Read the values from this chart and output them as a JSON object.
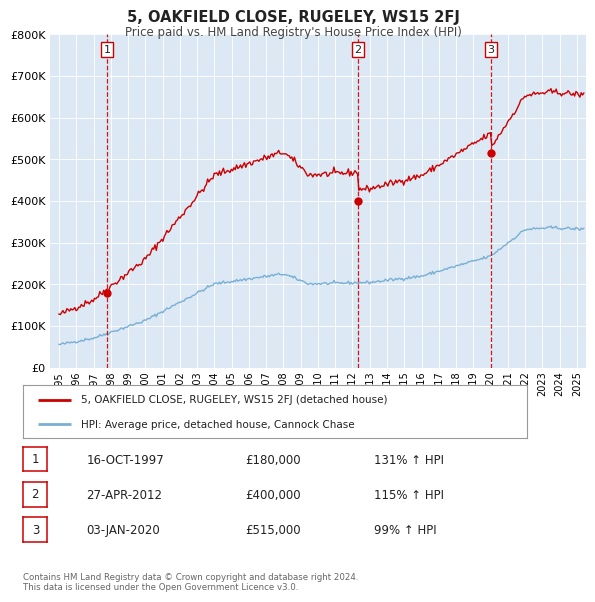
{
  "title": "5, OAKFIELD CLOSE, RUGELEY, WS15 2FJ",
  "subtitle": "Price paid vs. HM Land Registry's House Price Index (HPI)",
  "red_label": "5, OAKFIELD CLOSE, RUGELEY, WS15 2FJ (detached house)",
  "blue_label": "HPI: Average price, detached house, Cannock Chase",
  "sale_color": "#cc0000",
  "hpi_color": "#7aafd4",
  "plot_bg": "#dce9f5",
  "ylim": [
    0,
    800000
  ],
  "yticks": [
    0,
    100000,
    200000,
    300000,
    400000,
    500000,
    600000,
    700000,
    800000
  ],
  "ytick_labels": [
    "£0",
    "£100K",
    "£200K",
    "£300K",
    "£400K",
    "£500K",
    "£600K",
    "£700K",
    "£800K"
  ],
  "xlim_start": 1994.5,
  "xlim_end": 2025.5,
  "transactions": [
    {
      "num": 1,
      "date_str": "16-OCT-1997",
      "date_x": 1997.79,
      "price": 180000,
      "pct": "131%",
      "dir": "↑"
    },
    {
      "num": 2,
      "date_str": "27-APR-2012",
      "date_x": 2012.32,
      "price": 400000,
      "pct": "115%",
      "dir": "↑"
    },
    {
      "num": 3,
      "date_str": "03-JAN-2020",
      "date_x": 2020.01,
      "price": 515000,
      "pct": "99%",
      "dir": "↑"
    }
  ],
  "footnote1": "Contains HM Land Registry data © Crown copyright and database right 2024.",
  "footnote2": "This data is licensed under the Open Government Licence v3.0."
}
